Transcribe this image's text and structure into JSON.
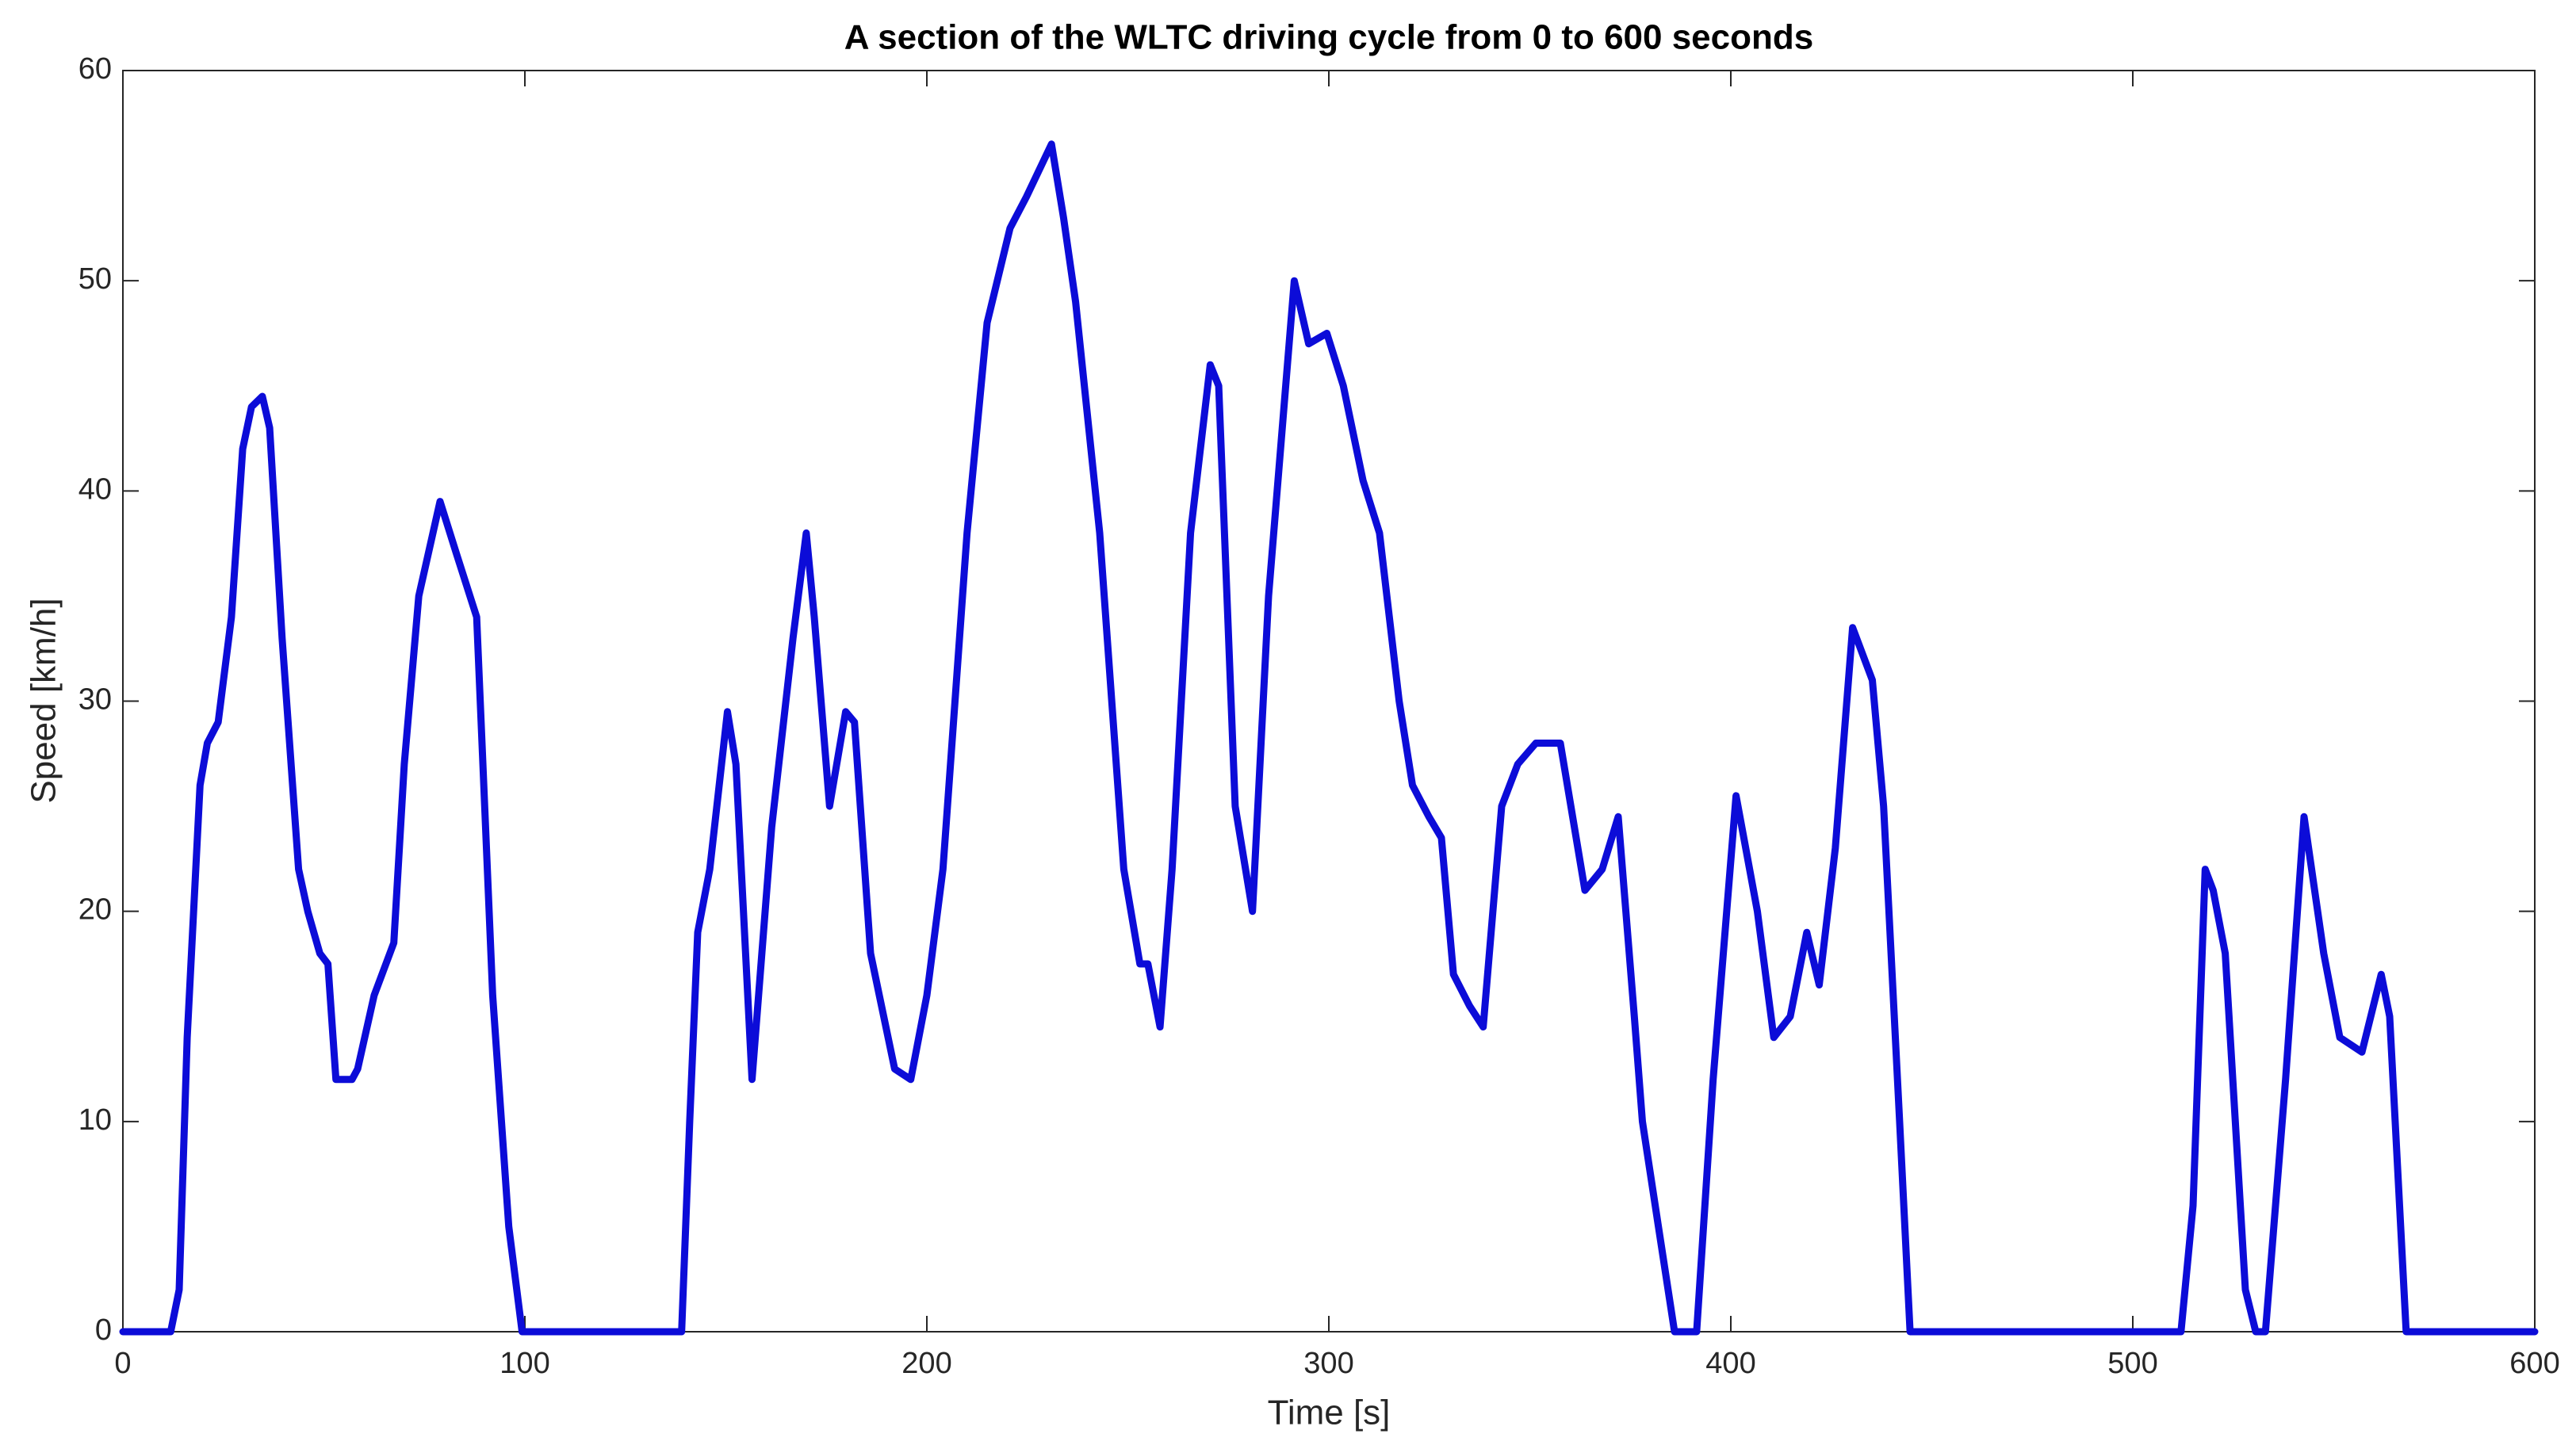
{
  "chart_data": {
    "type": "line",
    "title": "A section of the WLTC driving cycle from 0 to 600 seconds",
    "xlabel": "Time [s]",
    "ylabel": "Speed [km/h]",
    "x": [
      0,
      11.9,
      14,
      16,
      19.2,
      21,
      23.7,
      27,
      29.8,
      32,
      34.7,
      36.5,
      39.6,
      43.7,
      46,
      49,
      51,
      53,
      57,
      58.4,
      62.5,
      67.4,
      70,
      73.6,
      78.9,
      83,
      88,
      92,
      96,
      99.3,
      139,
      141,
      143,
      146,
      150.4,
      152.5,
      156.5,
      161.4,
      166.7,
      170,
      172,
      175.8,
      179.8,
      182,
      186,
      192,
      196,
      200,
      204,
      210,
      215,
      220.7,
      224.8,
      231,
      234,
      237,
      243,
      249,
      253,
      255,
      258,
      261,
      265.6,
      270.5,
      272.6,
      276.7,
      281,
      285,
      291.4,
      295,
      299.5,
      303.6,
      308.5,
      312.6,
      317.5,
      320.8,
      324.9,
      328,
      331,
      335,
      338.4,
      343,
      347,
      351.5,
      357.6,
      363.7,
      368,
      372,
      376,
      378,
      382,
      386,
      391.5,
      395.6,
      401.3,
      406.6,
      410.7,
      414.8,
      418.9,
      422,
      426,
      430.3,
      435.2,
      438,
      442,
      444.6,
      512,
      515,
      518,
      520,
      523,
      528,
      530.6,
      533,
      538,
      542.6,
      547.5,
      551.5,
      557,
      561.8,
      563.9,
      568,
      600
    ],
    "series": [
      {
        "color": "#0c0cd8",
        "values": [
          0,
          0,
          2,
          14,
          26,
          28,
          29,
          34,
          42,
          44,
          44.5,
          43,
          33,
          22,
          20,
          18,
          17.5,
          12,
          12,
          12.5,
          16,
          18.5,
          27,
          35,
          39.5,
          37,
          34,
          16,
          5,
          0,
          0,
          10,
          19,
          22,
          29.5,
          27,
          12,
          24,
          33,
          38,
          34,
          25,
          29.5,
          29,
          18,
          12.5,
          12,
          16,
          22,
          38,
          48,
          52.5,
          54,
          56.5,
          53,
          49,
          38,
          22,
          17.5,
          17.5,
          14.5,
          22,
          38,
          46,
          45,
          25,
          20,
          35,
          50,
          47,
          47.5,
          45,
          40.5,
          38,
          30,
          26,
          24.5,
          23.5,
          17,
          15.5,
          14.5,
          25,
          27,
          28,
          28,
          21,
          22,
          24.5,
          15,
          10,
          5,
          0,
          0,
          12,
          25.5,
          20,
          14,
          15,
          19,
          16.5,
          23,
          33.5,
          31,
          25,
          10,
          0,
          0,
          6,
          22,
          21,
          18,
          2,
          0,
          0,
          12,
          24.5,
          18,
          14,
          13.3,
          17,
          15,
          0,
          0
        ]
      }
    ],
    "xlim": [
      0,
      600
    ],
    "xticks": [
      0,
      100,
      200,
      300,
      400,
      500,
      600
    ],
    "ylim": [
      0,
      60
    ],
    "yticks": [
      0,
      10,
      20,
      30,
      40,
      50,
      60
    ]
  }
}
